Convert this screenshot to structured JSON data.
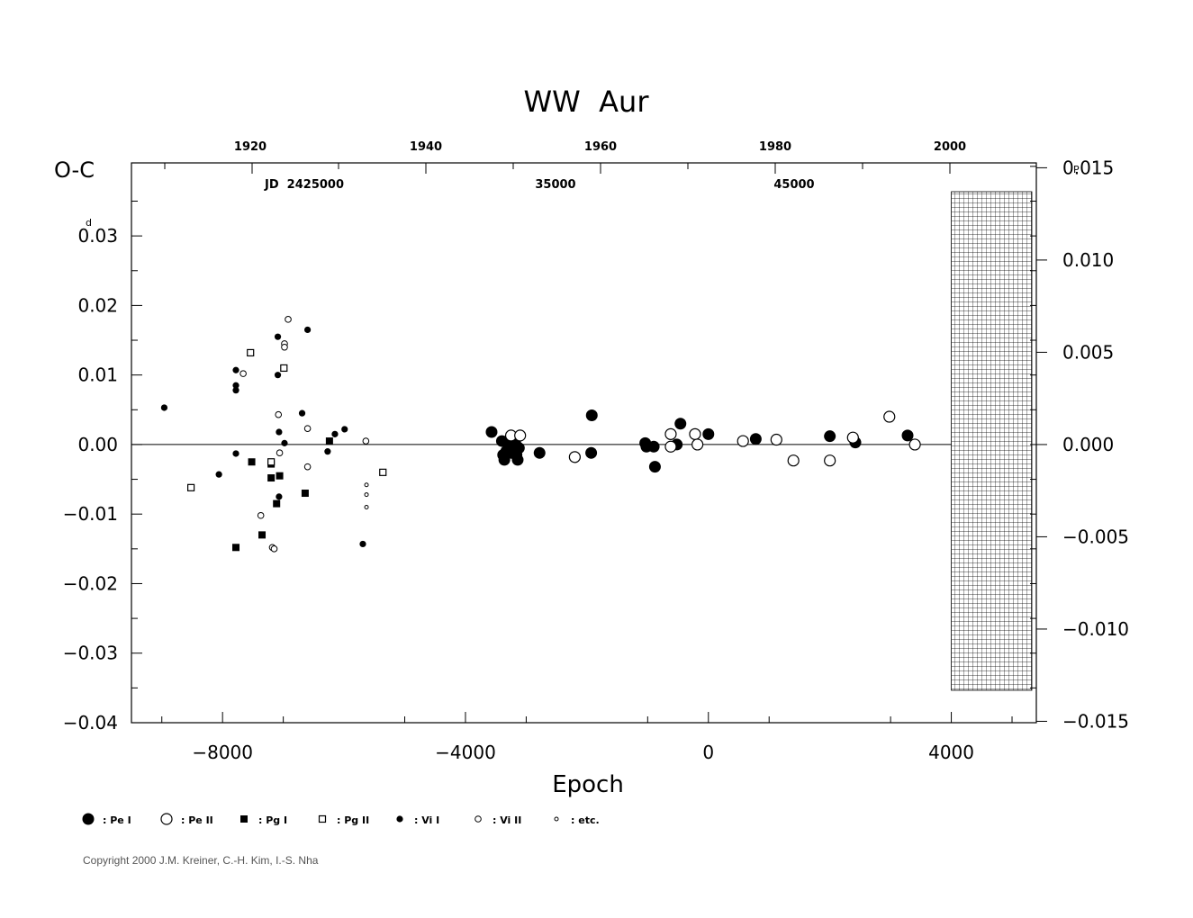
{
  "chart_data": {
    "type": "scatter",
    "title": "WW  Aur",
    "xlabel": "Epoch",
    "ylabel_left": "O-C",
    "ylabel_left_unit": "d",
    "ylabel_right_unit": "P",
    "xlim": [
      -9500,
      5400
    ],
    "ylim": [
      -0.04,
      0.0405
    ],
    "x_ticks": [
      -8000,
      -4000,
      0,
      4000
    ],
    "x_tick_labels": [
      "−8000",
      "−4000",
      "0",
      "4000"
    ],
    "y_left_ticks": [
      -0.04,
      -0.03,
      -0.02,
      -0.01,
      0.0,
      0.01,
      0.02,
      0.03
    ],
    "y_left_tick_labels": [
      "−0.04",
      "−0.03",
      "−0.02",
      "−0.01",
      "0.00",
      "0.01",
      "0.02",
      "0.03"
    ],
    "y_right_ticks": [
      0.01509,
      0.01006,
      0.00503,
      0.0,
      -0.00503,
      -0.01006,
      -0.01509
    ],
    "y_right_tick_labels": [
      "0.015",
      "0.010",
      "0.005",
      "0.000",
      "−0.005",
      "−0.010",
      "−0.015"
    ],
    "top_axis_years": [
      "1920",
      "1940",
      "1960",
      "1980",
      "2000"
    ],
    "top_axis_jd_labels": [
      "JD  2425000",
      "35000",
      "45000"
    ],
    "hatched_region_x": [
      4000,
      5400
    ],
    "zero_line": true,
    "legend": [
      {
        "marker": "pe1",
        "label": ": Pe  I"
      },
      {
        "marker": "pe2",
        "label": ": Pe  II"
      },
      {
        "marker": "pg1",
        "label": ": Pg  I"
      },
      {
        "marker": "pg2",
        "label": ": Pg  II"
      },
      {
        "marker": "vi1",
        "label": ": Vi  I"
      },
      {
        "marker": "vi2",
        "label": ": Vi  II"
      },
      {
        "marker": "etc",
        "label": ": etc."
      }
    ],
    "series": [
      {
        "marker": "pe1",
        "points": [
          [
            -3570,
            0.0018
          ],
          [
            -3400,
            0.0005
          ],
          [
            -3380,
            -0.0015
          ],
          [
            -3360,
            -0.0022
          ],
          [
            -3330,
            -0.001
          ],
          [
            -3310,
            0.0005
          ],
          [
            -3280,
            -0.0003
          ],
          [
            -3260,
            -0.0008
          ],
          [
            -3240,
            -0.0012
          ],
          [
            -3210,
            -0.0005
          ],
          [
            -3180,
            0.0002
          ],
          [
            -3160,
            -0.0015
          ],
          [
            -3140,
            -0.0022
          ],
          [
            -3120,
            -0.0005
          ],
          [
            -2780,
            -0.0012
          ],
          [
            -1920,
            0.0042
          ],
          [
            -1930,
            -0.0012
          ],
          [
            -1040,
            0.0002
          ],
          [
            -1020,
            -0.0003
          ],
          [
            -900,
            -0.0003
          ],
          [
            -880,
            -0.0032
          ],
          [
            -520,
            0.0
          ],
          [
            -460,
            0.003
          ],
          [
            0,
            0.0015
          ],
          [
            780,
            0.0008
          ],
          [
            2000,
            0.0012
          ],
          [
            2420,
            0.0003
          ],
          [
            3280,
            0.0013
          ]
        ]
      },
      {
        "marker": "pe2",
        "points": [
          [
            -3250,
            0.0013
          ],
          [
            -3100,
            0.0013
          ],
          [
            -2200,
            -0.0018
          ],
          [
            -620,
            0.0015
          ],
          [
            -620,
            -0.0003
          ],
          [
            -220,
            0.0015
          ],
          [
            -180,
            0.0
          ],
          [
            570,
            0.0005
          ],
          [
            1120,
            0.0007
          ],
          [
            1400,
            -0.0023
          ],
          [
            2000,
            -0.0023
          ],
          [
            2380,
            0.001
          ],
          [
            2980,
            0.004
          ],
          [
            3400,
            0.0
          ]
        ]
      },
      {
        "marker": "pg1",
        "points": [
          [
            -7780,
            -0.0148
          ],
          [
            -7520,
            -0.0025
          ],
          [
            -7350,
            -0.013
          ],
          [
            -7200,
            -0.0048
          ],
          [
            -7200,
            -0.0028
          ],
          [
            -7110,
            -0.0085
          ],
          [
            -7060,
            -0.0045
          ],
          [
            -6640,
            -0.007
          ],
          [
            -6240,
            0.0005
          ]
        ]
      },
      {
        "marker": "pg2",
        "points": [
          [
            -8520,
            -0.0062
          ],
          [
            -7540,
            0.0132
          ],
          [
            -7200,
            -0.0025
          ],
          [
            -6990,
            0.011
          ],
          [
            -5360,
            -0.004
          ]
        ]
      },
      {
        "marker": "vi1",
        "points": [
          [
            -8960,
            0.0053
          ],
          [
            -8060,
            -0.0043
          ],
          [
            -7780,
            0.0107
          ],
          [
            -7780,
            0.0085
          ],
          [
            -7780,
            0.0078
          ],
          [
            -7780,
            -0.0013
          ],
          [
            -7090,
            0.0155
          ],
          [
            -7090,
            0.01
          ],
          [
            -7070,
            0.0018
          ],
          [
            -7070,
            -0.0075
          ],
          [
            -6980,
            0.0002
          ],
          [
            -6690,
            0.0045
          ],
          [
            -6600,
            0.0165
          ],
          [
            -6270,
            -0.001
          ],
          [
            -6150,
            0.0015
          ],
          [
            -5990,
            0.0022
          ],
          [
            -5690,
            -0.0143
          ]
        ]
      },
      {
        "marker": "vi2",
        "points": [
          [
            -7660,
            0.0102
          ],
          [
            -7370,
            -0.0102
          ],
          [
            -7180,
            -0.0148
          ],
          [
            -7150,
            -0.015
          ],
          [
            -7080,
            0.0043
          ],
          [
            -7060,
            -0.0012
          ],
          [
            -6980,
            0.0145
          ],
          [
            -6980,
            0.014
          ],
          [
            -6920,
            0.018
          ],
          [
            -6600,
            0.0023
          ],
          [
            -6600,
            -0.0032
          ],
          [
            -5640,
            0.0005
          ]
        ]
      },
      {
        "marker": "etc",
        "points": [
          [
            -5630,
            -0.0058
          ],
          [
            -5630,
            -0.0072
          ],
          [
            -5630,
            -0.009
          ]
        ]
      }
    ]
  },
  "footer": {
    "copyright": "Copyright 2000 J.M. Kreiner, C.-H. Kim, I.-S. Nha"
  }
}
